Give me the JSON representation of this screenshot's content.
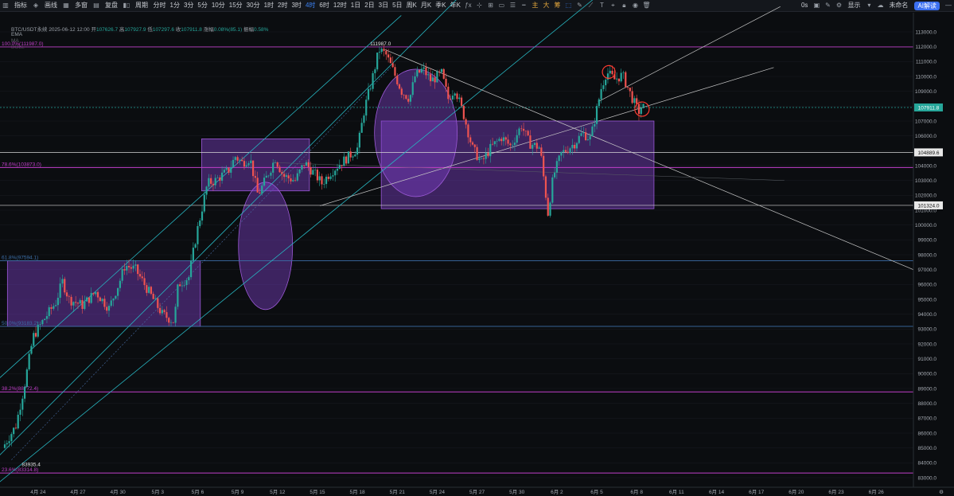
{
  "toolbar": {
    "left_buttons": [
      "指标",
      "画线",
      "多窗",
      "复盘"
    ],
    "period_label": "周期",
    "intervals": [
      "分时",
      "1分",
      "3分",
      "5分",
      "10分",
      "15分",
      "30分",
      "1时",
      "2时",
      "3时",
      "4时",
      "6时",
      "12时",
      "1日",
      "2日",
      "3日",
      "5日",
      "周K",
      "月K",
      "季K",
      "年K"
    ],
    "active_interval": "4时",
    "tool_icons": [
      "candle-type-icon",
      "fx-icon",
      "crosshair-icon",
      "layout-icon",
      "rect-icon",
      "menu-icon",
      "pen-line-icon"
    ],
    "colored_icons": [
      "主",
      "大",
      "筹"
    ],
    "right_countdown": "0s",
    "display_label": "显示",
    "user_label": "未命名",
    "ai_label": "AI解读"
  },
  "info": {
    "symbol": "BTC/USDT永续",
    "datetime": "2025-06-12 12:00",
    "open_label": "开",
    "open": "107626.7",
    "high_label": "高",
    "high": "107927.9",
    "low_label": "低",
    "low": "107297.6",
    "close_label": "收",
    "close": "107911.8",
    "change_label": "涨幅",
    "change": "0.08%(85.1)",
    "amplitude_label": "振幅",
    "amplitude": "0.58%"
  },
  "indicators": [
    "EMA",
    "MA",
    "BOLL"
  ],
  "colors": {
    "up": "#26a69a",
    "down": "#ef5350",
    "fib": "#c13fc9",
    "box_fill": "rgba(122,62,196,0.45)",
    "box_stroke": "#9b59d6",
    "channel": "#27b5c0",
    "trend": "#c8c8c8",
    "current": "#26a69a"
  },
  "chart_data": {
    "type": "candlestick",
    "symbol": "BTC/USDT永续",
    "interval": "4h",
    "x_ticks": [
      "4月 24",
      "4月 27",
      "4月 30",
      "5月 3",
      "5月 6",
      "5月 9",
      "5月 12",
      "5月 15",
      "5月 18",
      "5月 21",
      "5月 24",
      "5月 27",
      "5月 30",
      "6月 2",
      "6月 5",
      "6月 8",
      "6月 11",
      "6月 14",
      "6月 17",
      "6月 20",
      "6月 23",
      "6月 26"
    ],
    "y_ticks": [
      83000,
      84000,
      85000,
      86000,
      87000,
      88000,
      89000,
      90000,
      91000,
      92000,
      93000,
      94000,
      95000,
      96000,
      97000,
      98000,
      99000,
      100000,
      101000,
      102000,
      103000,
      104000,
      105000,
      106000,
      107000,
      108000,
      109000,
      110000,
      111000,
      112000,
      113000
    ],
    "ylim": [
      82500,
      113600
    ],
    "xlim_days": [
      0,
      65
    ],
    "price_path": [
      [
        0,
        85000
      ],
      [
        1,
        86500
      ],
      [
        1.6,
        89000
      ],
      [
        2.3,
        92500
      ],
      [
        3,
        93500
      ],
      [
        4,
        94800
      ],
      [
        4.5,
        96200
      ],
      [
        5,
        95000
      ],
      [
        6,
        94600
      ],
      [
        7,
        95500
      ],
      [
        8,
        94400
      ],
      [
        8.8,
        96200
      ],
      [
        9.2,
        97300
      ],
      [
        10,
        97000
      ],
      [
        11,
        95500
      ],
      [
        12,
        94000
      ],
      [
        12.9,
        93500
      ],
      [
        13.2,
        96000
      ],
      [
        14,
        96500
      ],
      [
        14.6,
        99500
      ],
      [
        15.4,
        102800
      ],
      [
        16,
        103000
      ],
      [
        17,
        103700
      ],
      [
        17.5,
        104600
      ],
      [
        18,
        104200
      ],
      [
        18.6,
        104500
      ],
      [
        19.2,
        102000
      ],
      [
        20,
        103500
      ],
      [
        20.5,
        104500
      ],
      [
        21.1,
        103300
      ],
      [
        22,
        103000
      ],
      [
        22.7,
        104200
      ],
      [
        23.5,
        103400
      ],
      [
        24,
        102800
      ],
      [
        24.6,
        103500
      ],
      [
        25.2,
        104000
      ],
      [
        26,
        104600
      ],
      [
        26.7,
        105200
      ],
      [
        27.2,
        107800
      ],
      [
        27.7,
        109500
      ],
      [
        28.3,
        111800
      ],
      [
        28.8,
        111500
      ],
      [
        29.3,
        110500
      ],
      [
        30,
        109000
      ],
      [
        30.6,
        108500
      ],
      [
        31,
        110000
      ],
      [
        31.6,
        110500
      ],
      [
        32.2,
        109700
      ],
      [
        33,
        110200
      ],
      [
        33.5,
        108500
      ],
      [
        34,
        109200
      ],
      [
        34.7,
        107300
      ],
      [
        35.3,
        105200
      ],
      [
        36,
        104200
      ],
      [
        36.7,
        105200
      ],
      [
        37.5,
        105900
      ],
      [
        38.2,
        105300
      ],
      [
        39,
        106700
      ],
      [
        39.6,
        105500
      ],
      [
        40.4,
        105200
      ],
      [
        41,
        100800
      ],
      [
        41.4,
        103300
      ],
      [
        42,
        104800
      ],
      [
        43,
        105500
      ],
      [
        43.6,
        106200
      ],
      [
        44.2,
        105800
      ],
      [
        44.6,
        107500
      ],
      [
        45,
        109200
      ],
      [
        45.4,
        110300
      ],
      [
        46,
        109800
      ],
      [
        46.6,
        110100
      ],
      [
        47.2,
        108800
      ],
      [
        47.8,
        107600
      ],
      [
        48,
        107911.8
      ]
    ],
    "current_price": 107911.8,
    "price_labels": [
      {
        "text": "104889.6",
        "value": 104889.6
      },
      {
        "text": "101324.0",
        "value": 101324.0
      }
    ],
    "fib_levels": [
      {
        "label": "100.0%(111987.0)",
        "value": 111987.0,
        "color": "#c13fc9"
      },
      {
        "label": "78.6%(103873.0)",
        "value": 103873.0,
        "color": "#c13fc9"
      },
      {
        "label": "61.8%(97594.1)",
        "value": 97594.1,
        "color": "#3c6fa8"
      },
      {
        "label": "50.0%(93183.2)",
        "value": 93183.2,
        "color": "#3c6fa8"
      },
      {
        "label": "38.2%(88772.4)",
        "value": 88772.4,
        "color": "#c13fc9"
      },
      {
        "label": "23.6%(83314.8)",
        "value": 83314.8,
        "color": "#c13fc9"
      }
    ],
    "annotations": [
      {
        "text": "111987.0",
        "value": 111987.0,
        "day": 28.6
      },
      {
        "text": "83935.4",
        "value": 83935.4,
        "day": 0.8
      }
    ],
    "zones": [
      {
        "from_day": 0.2,
        "to_day": 14.7,
        "low": 93183.2,
        "high": 97594.1
      },
      {
        "from_day": 14.8,
        "to_day": 22.9,
        "low": 102300,
        "high": 105800
      },
      {
        "from_day": 28.3,
        "to_day": 48.8,
        "low": 101100,
        "high": 107000
      }
    ]
  }
}
